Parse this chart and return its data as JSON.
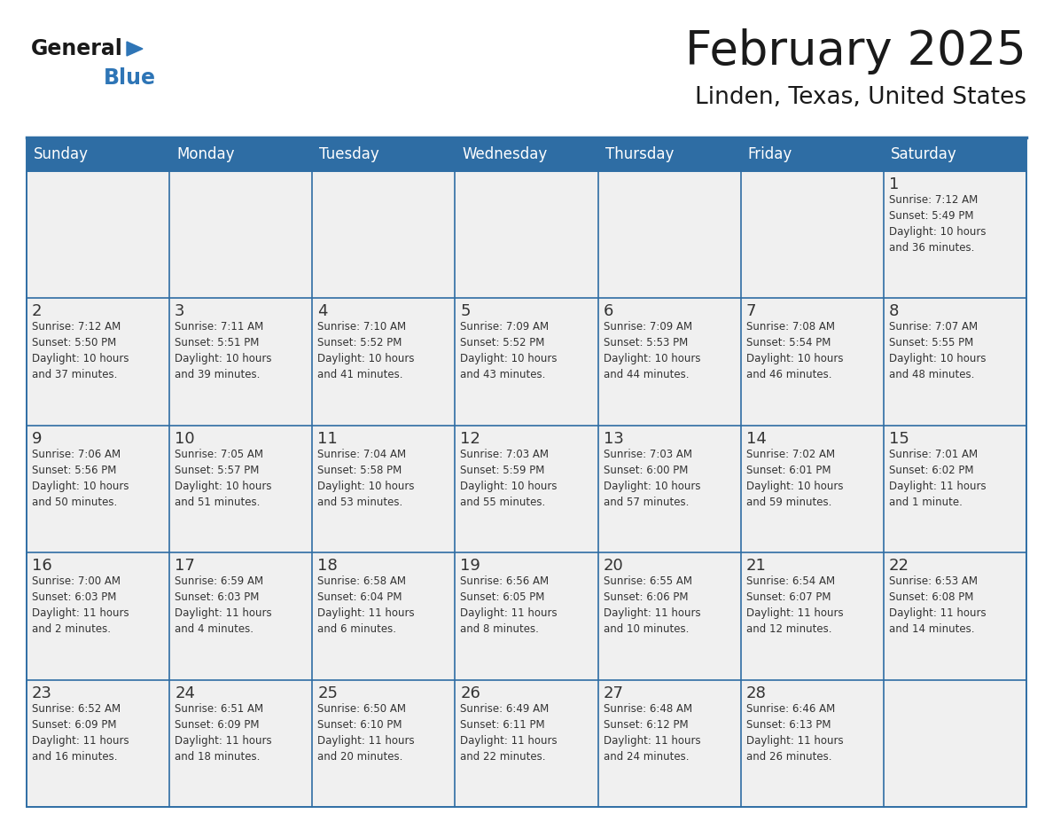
{
  "title": "February 2025",
  "subtitle": "Linden, Texas, United States",
  "header_bg": "#2E6DA4",
  "header_text_color": "#FFFFFF",
  "cell_bg": "#F0F0F0",
  "day_number_color": "#333333",
  "cell_text_color": "#333333",
  "grid_line_color": "#2E6DA4",
  "days_of_week": [
    "Sunday",
    "Monday",
    "Tuesday",
    "Wednesday",
    "Thursday",
    "Friday",
    "Saturday"
  ],
  "weeks": [
    [
      {
        "day": null,
        "info": null
      },
      {
        "day": null,
        "info": null
      },
      {
        "day": null,
        "info": null
      },
      {
        "day": null,
        "info": null
      },
      {
        "day": null,
        "info": null
      },
      {
        "day": null,
        "info": null
      },
      {
        "day": 1,
        "info": "Sunrise: 7:12 AM\nSunset: 5:49 PM\nDaylight: 10 hours\nand 36 minutes."
      }
    ],
    [
      {
        "day": 2,
        "info": "Sunrise: 7:12 AM\nSunset: 5:50 PM\nDaylight: 10 hours\nand 37 minutes."
      },
      {
        "day": 3,
        "info": "Sunrise: 7:11 AM\nSunset: 5:51 PM\nDaylight: 10 hours\nand 39 minutes."
      },
      {
        "day": 4,
        "info": "Sunrise: 7:10 AM\nSunset: 5:52 PM\nDaylight: 10 hours\nand 41 minutes."
      },
      {
        "day": 5,
        "info": "Sunrise: 7:09 AM\nSunset: 5:52 PM\nDaylight: 10 hours\nand 43 minutes."
      },
      {
        "day": 6,
        "info": "Sunrise: 7:09 AM\nSunset: 5:53 PM\nDaylight: 10 hours\nand 44 minutes."
      },
      {
        "day": 7,
        "info": "Sunrise: 7:08 AM\nSunset: 5:54 PM\nDaylight: 10 hours\nand 46 minutes."
      },
      {
        "day": 8,
        "info": "Sunrise: 7:07 AM\nSunset: 5:55 PM\nDaylight: 10 hours\nand 48 minutes."
      }
    ],
    [
      {
        "day": 9,
        "info": "Sunrise: 7:06 AM\nSunset: 5:56 PM\nDaylight: 10 hours\nand 50 minutes."
      },
      {
        "day": 10,
        "info": "Sunrise: 7:05 AM\nSunset: 5:57 PM\nDaylight: 10 hours\nand 51 minutes."
      },
      {
        "day": 11,
        "info": "Sunrise: 7:04 AM\nSunset: 5:58 PM\nDaylight: 10 hours\nand 53 minutes."
      },
      {
        "day": 12,
        "info": "Sunrise: 7:03 AM\nSunset: 5:59 PM\nDaylight: 10 hours\nand 55 minutes."
      },
      {
        "day": 13,
        "info": "Sunrise: 7:03 AM\nSunset: 6:00 PM\nDaylight: 10 hours\nand 57 minutes."
      },
      {
        "day": 14,
        "info": "Sunrise: 7:02 AM\nSunset: 6:01 PM\nDaylight: 10 hours\nand 59 minutes."
      },
      {
        "day": 15,
        "info": "Sunrise: 7:01 AM\nSunset: 6:02 PM\nDaylight: 11 hours\nand 1 minute."
      }
    ],
    [
      {
        "day": 16,
        "info": "Sunrise: 7:00 AM\nSunset: 6:03 PM\nDaylight: 11 hours\nand 2 minutes."
      },
      {
        "day": 17,
        "info": "Sunrise: 6:59 AM\nSunset: 6:03 PM\nDaylight: 11 hours\nand 4 minutes."
      },
      {
        "day": 18,
        "info": "Sunrise: 6:58 AM\nSunset: 6:04 PM\nDaylight: 11 hours\nand 6 minutes."
      },
      {
        "day": 19,
        "info": "Sunrise: 6:56 AM\nSunset: 6:05 PM\nDaylight: 11 hours\nand 8 minutes."
      },
      {
        "day": 20,
        "info": "Sunrise: 6:55 AM\nSunset: 6:06 PM\nDaylight: 11 hours\nand 10 minutes."
      },
      {
        "day": 21,
        "info": "Sunrise: 6:54 AM\nSunset: 6:07 PM\nDaylight: 11 hours\nand 12 minutes."
      },
      {
        "day": 22,
        "info": "Sunrise: 6:53 AM\nSunset: 6:08 PM\nDaylight: 11 hours\nand 14 minutes."
      }
    ],
    [
      {
        "day": 23,
        "info": "Sunrise: 6:52 AM\nSunset: 6:09 PM\nDaylight: 11 hours\nand 16 minutes."
      },
      {
        "day": 24,
        "info": "Sunrise: 6:51 AM\nSunset: 6:09 PM\nDaylight: 11 hours\nand 18 minutes."
      },
      {
        "day": 25,
        "info": "Sunrise: 6:50 AM\nSunset: 6:10 PM\nDaylight: 11 hours\nand 20 minutes."
      },
      {
        "day": 26,
        "info": "Sunrise: 6:49 AM\nSunset: 6:11 PM\nDaylight: 11 hours\nand 22 minutes."
      },
      {
        "day": 27,
        "info": "Sunrise: 6:48 AM\nSunset: 6:12 PM\nDaylight: 11 hours\nand 24 minutes."
      },
      {
        "day": 28,
        "info": "Sunrise: 6:46 AM\nSunset: 6:13 PM\nDaylight: 11 hours\nand 26 minutes."
      },
      {
        "day": null,
        "info": null
      }
    ]
  ],
  "logo_text_general": "General",
  "logo_text_blue": "Blue",
  "logo_color_general": "#1a1a1a",
  "logo_color_blue": "#2E75B6",
  "logo_triangle_color": "#2E75B6",
  "title_color": "#1a1a1a",
  "subtitle_color": "#1a1a1a"
}
